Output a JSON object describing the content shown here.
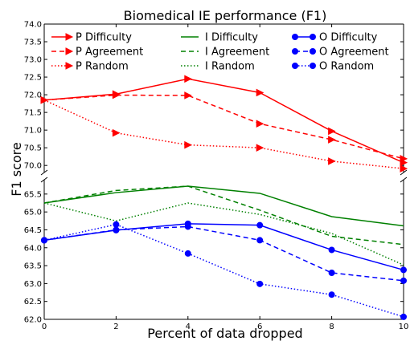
{
  "chart_data": {
    "type": "line",
    "title": "Biomedical IE performance (F1)",
    "xlabel": "Percent of data dropped",
    "ylabel": "F1 score",
    "x": [
      0,
      2,
      4,
      6,
      8,
      10
    ],
    "xlim": [
      0,
      10
    ],
    "x_ticks": [
      "0",
      "2",
      "4",
      "6",
      "8",
      "10"
    ],
    "broken_y_axis": true,
    "upper_panel": {
      "ylim": [
        69.8,
        74.0
      ],
      "y_ticks": [
        "70.0",
        "70.5",
        "71.0",
        "71.5",
        "72.0",
        "72.5",
        "73.0",
        "73.5",
        "74.0"
      ]
    },
    "lower_panel": {
      "ylim": [
        62.0,
        65.9
      ],
      "y_ticks": [
        "62.0",
        "62.5",
        "63.0",
        "63.5",
        "64.0",
        "64.5",
        "65.0",
        "65.5"
      ]
    },
    "grid": false,
    "legend_position": "top",
    "series": [
      {
        "name": "P Difficulty",
        "panel": "upper",
        "color": "#ff0000",
        "style": "solid",
        "marker": "triangle-right",
        "values": [
          71.85,
          72.02,
          72.45,
          72.06,
          70.97,
          70.08
        ]
      },
      {
        "name": "P Agreement",
        "panel": "upper",
        "color": "#ff0000",
        "style": "dashed",
        "marker": "triangle-right",
        "values": [
          71.85,
          71.99,
          71.98,
          71.18,
          70.73,
          70.19
        ]
      },
      {
        "name": "P Random",
        "panel": "upper",
        "color": "#ff0000",
        "style": "dotted",
        "marker": "triangle-right",
        "values": [
          71.85,
          70.92,
          70.58,
          70.5,
          70.12,
          69.91
        ]
      },
      {
        "name": "I Difficulty",
        "panel": "lower",
        "color": "#008000",
        "style": "solid",
        "marker": "none",
        "values": [
          65.25,
          65.54,
          65.72,
          65.52,
          64.87,
          64.61
        ]
      },
      {
        "name": "I Agreement",
        "panel": "lower",
        "color": "#008000",
        "style": "dashed",
        "marker": "none",
        "values": [
          65.25,
          65.6,
          65.72,
          65.05,
          64.32,
          64.09
        ]
      },
      {
        "name": "I Random",
        "panel": "lower",
        "color": "#008000",
        "style": "dotted",
        "marker": "none",
        "values": [
          65.25,
          64.75,
          65.25,
          64.93,
          64.4,
          63.52
        ]
      },
      {
        "name": "O Difficulty",
        "panel": "lower",
        "color": "#0000ff",
        "style": "solid",
        "marker": "circle",
        "values": [
          64.21,
          64.49,
          64.67,
          64.63,
          63.94,
          63.38
        ]
      },
      {
        "name": "O Agreement",
        "panel": "lower",
        "color": "#0000ff",
        "style": "dashed",
        "marker": "circle",
        "values": [
          64.21,
          64.5,
          64.59,
          64.21,
          63.3,
          63.08
        ]
      },
      {
        "name": "O Random",
        "panel": "lower",
        "color": "#0000ff",
        "style": "dotted",
        "marker": "circle",
        "values": [
          64.21,
          64.65,
          63.84,
          62.99,
          62.69,
          62.07
        ]
      }
    ]
  }
}
